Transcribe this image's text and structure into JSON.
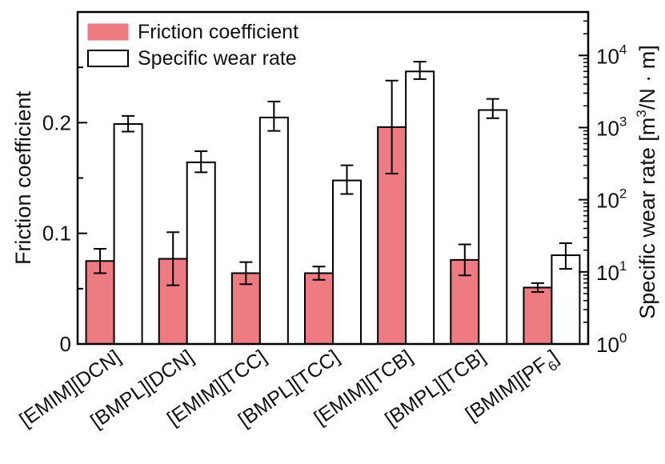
{
  "chart_data": {
    "type": "bar",
    "categories": [
      "[EMIM][DCN]",
      "[BMPL][DCN]",
      "[EMIM][TCC]",
      "[BMPL][TCC]",
      "[EMIM][TCB]",
      "[BMPL][TCB]",
      "[BMIM][PF6]"
    ],
    "category_subscripts": [
      "",
      "",
      "",
      "",
      "",
      "",
      "6"
    ],
    "series": [
      {
        "name": "Friction coefficient",
        "axis": "left",
        "color": "#ee7a82",
        "values": [
          0.075,
          0.077,
          0.064,
          0.064,
          0.196,
          0.076,
          0.051
        ],
        "error": [
          0.011,
          0.024,
          0.01,
          0.006,
          0.042,
          0.014,
          0.004
        ]
      },
      {
        "name": "Specific wear rate",
        "axis": "right",
        "color": "#ffffff",
        "values": [
          1120,
          330,
          1380,
          185,
          6000,
          1750,
          17
        ],
        "error_low": [
          880,
          240,
          900,
          120,
          4700,
          1350,
          11
        ],
        "error_high": [
          1450,
          470,
          2300,
          300,
          8200,
          2500,
          25
        ]
      }
    ],
    "ylabel_left": "Friction coefficient",
    "ylabel_right": {
      "text_a": "Specific wear rate [m",
      "sup": "3",
      "text_b": "/N · m]"
    },
    "ylim_left": [
      0,
      0.3
    ],
    "yticks_left": [
      "0",
      "0.1",
      "0.2"
    ],
    "ylim_right_log": [
      1,
      40000
    ],
    "yticks_right": [
      {
        "base": "10",
        "exp": "0"
      },
      {
        "base": "10",
        "exp": "1"
      },
      {
        "base": "10",
        "exp": "2"
      },
      {
        "base": "10",
        "exp": "3"
      },
      {
        "base": "10",
        "exp": "4"
      }
    ],
    "legend": {
      "position": "top-left"
    }
  }
}
